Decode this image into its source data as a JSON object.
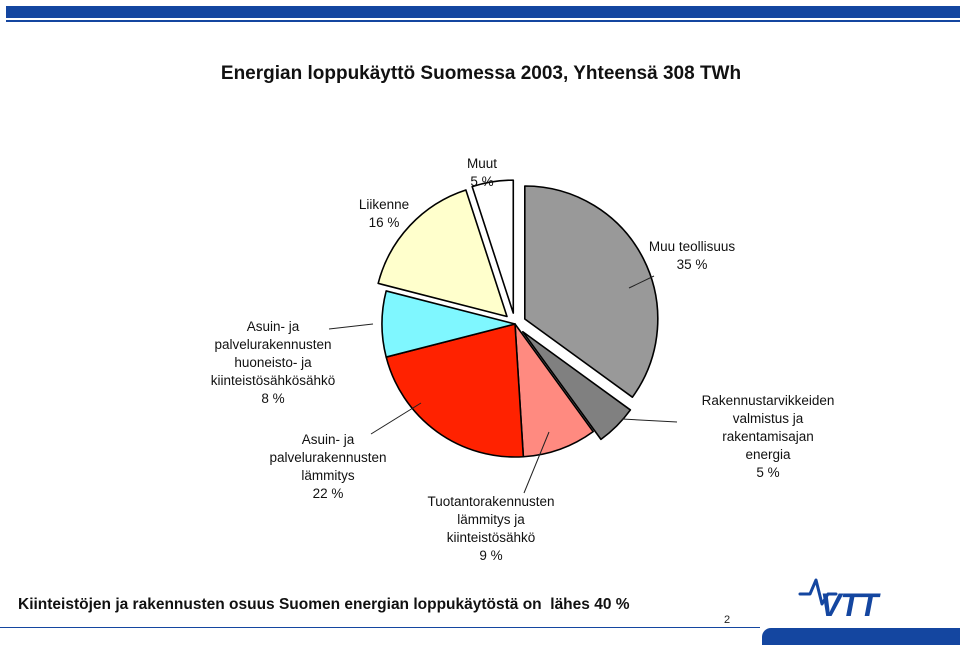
{
  "chart_data": {
    "type": "pie",
    "title": "Energian loppukäyttö Suomessa 2003, Yhteensä 308 TWh",
    "slices": [
      {
        "key": "muu-teollisuus",
        "label_lines": [
          "Muu teollisuus",
          "35 %"
        ],
        "value": 35,
        "color": "#999999",
        "exploded": true
      },
      {
        "key": "rakennustarvikkeiden",
        "label_lines": [
          "Rakennustarvikkeiden",
          "valmistus ja",
          "rakentamisajan",
          "energia",
          "5 %"
        ],
        "value": 5,
        "color": "#808080",
        "exploded": true
      },
      {
        "key": "tuotantorakennusten",
        "label_lines": [
          "Tuotantorakennusten",
          "lämmitys ja",
          "kiinteistösähkö",
          "9 %"
        ],
        "value": 9,
        "color": "#ff8a80",
        "exploded": false
      },
      {
        "key": "asuin-lammitys",
        "label_lines": [
          "Asuin- ja",
          "palvelurakennusten",
          "lämmitys",
          "22 %"
        ],
        "value": 22,
        "color": "#ff2200",
        "exploded": false
      },
      {
        "key": "asuin-huoneisto",
        "label_lines": [
          "Asuin- ja",
          "palvelurakennusten",
          "huoneisto- ja",
          "kiinteistösähkösähkö",
          "8 %"
        ],
        "value": 8,
        "color": "#7ff7ff",
        "exploded": false
      },
      {
        "key": "liikenne",
        "label_lines": [
          "Liikenne",
          "16 %"
        ],
        "value": 16,
        "color": "#ffffcc",
        "exploded": true
      },
      {
        "key": "muut",
        "label_lines": [
          "Muut",
          "5 %"
        ],
        "value": 5,
        "color": "#ffffff",
        "exploded": true
      }
    ]
  },
  "caption": "Kiinteistöjen ja rakennusten osuus Suomen energian loppukäytöstä on  lähes 40 %",
  "page_number": "2",
  "logo_text": "VTT",
  "colors": {
    "brand_blue": "#1446a0"
  }
}
